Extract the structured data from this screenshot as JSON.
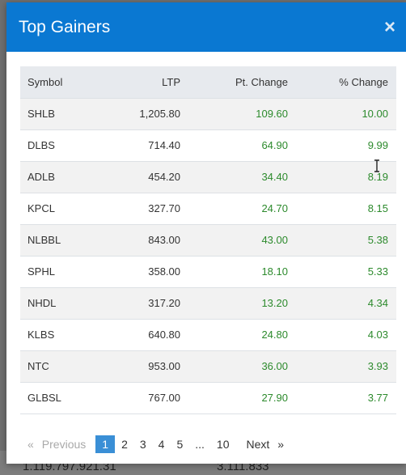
{
  "behind": {
    "left_value": "1.119.797.921.31",
    "right_value": "3.111.833"
  },
  "modal": {
    "title": "Top Gainers",
    "close_glyph": "×"
  },
  "table": {
    "headers": {
      "symbol": "Symbol",
      "ltp": "LTP",
      "pt_change": "Pt. Change",
      "pct_change": "% Change"
    },
    "rows": [
      {
        "symbol": "SHLB",
        "ltp": "1,205.80",
        "pt_change": "109.60",
        "pct_change": "10.00"
      },
      {
        "symbol": "DLBS",
        "ltp": "714.40",
        "pt_change": "64.90",
        "pct_change": "9.99"
      },
      {
        "symbol": "ADLB",
        "ltp": "454.20",
        "pt_change": "34.40",
        "pct_change": "8.19"
      },
      {
        "symbol": "KPCL",
        "ltp": "327.70",
        "pt_change": "24.70",
        "pct_change": "8.15"
      },
      {
        "symbol": "NLBBL",
        "ltp": "843.00",
        "pt_change": "43.00",
        "pct_change": "5.38"
      },
      {
        "symbol": "SPHL",
        "ltp": "358.00",
        "pt_change": "18.10",
        "pct_change": "5.33"
      },
      {
        "symbol": "NHDL",
        "ltp": "317.20",
        "pt_change": "13.20",
        "pct_change": "4.34"
      },
      {
        "symbol": "KLBS",
        "ltp": "640.80",
        "pt_change": "24.80",
        "pct_change": "4.03"
      },
      {
        "symbol": "NTC",
        "ltp": "953.00",
        "pt_change": "36.00",
        "pct_change": "3.93"
      },
      {
        "symbol": "GLBSL",
        "ltp": "767.00",
        "pt_change": "27.90",
        "pct_change": "3.77"
      }
    ]
  },
  "pagination": {
    "prev_arrow": "«",
    "prev_label": "Previous",
    "pages": [
      "1",
      "2",
      "3",
      "4",
      "5",
      "...",
      "10"
    ],
    "active_page": "1",
    "next_label": "Next",
    "next_arrow": "»"
  },
  "colors": {
    "header": "#0a78d2",
    "positive": "#2c8a2c",
    "active_page": "#3a8fd6"
  }
}
